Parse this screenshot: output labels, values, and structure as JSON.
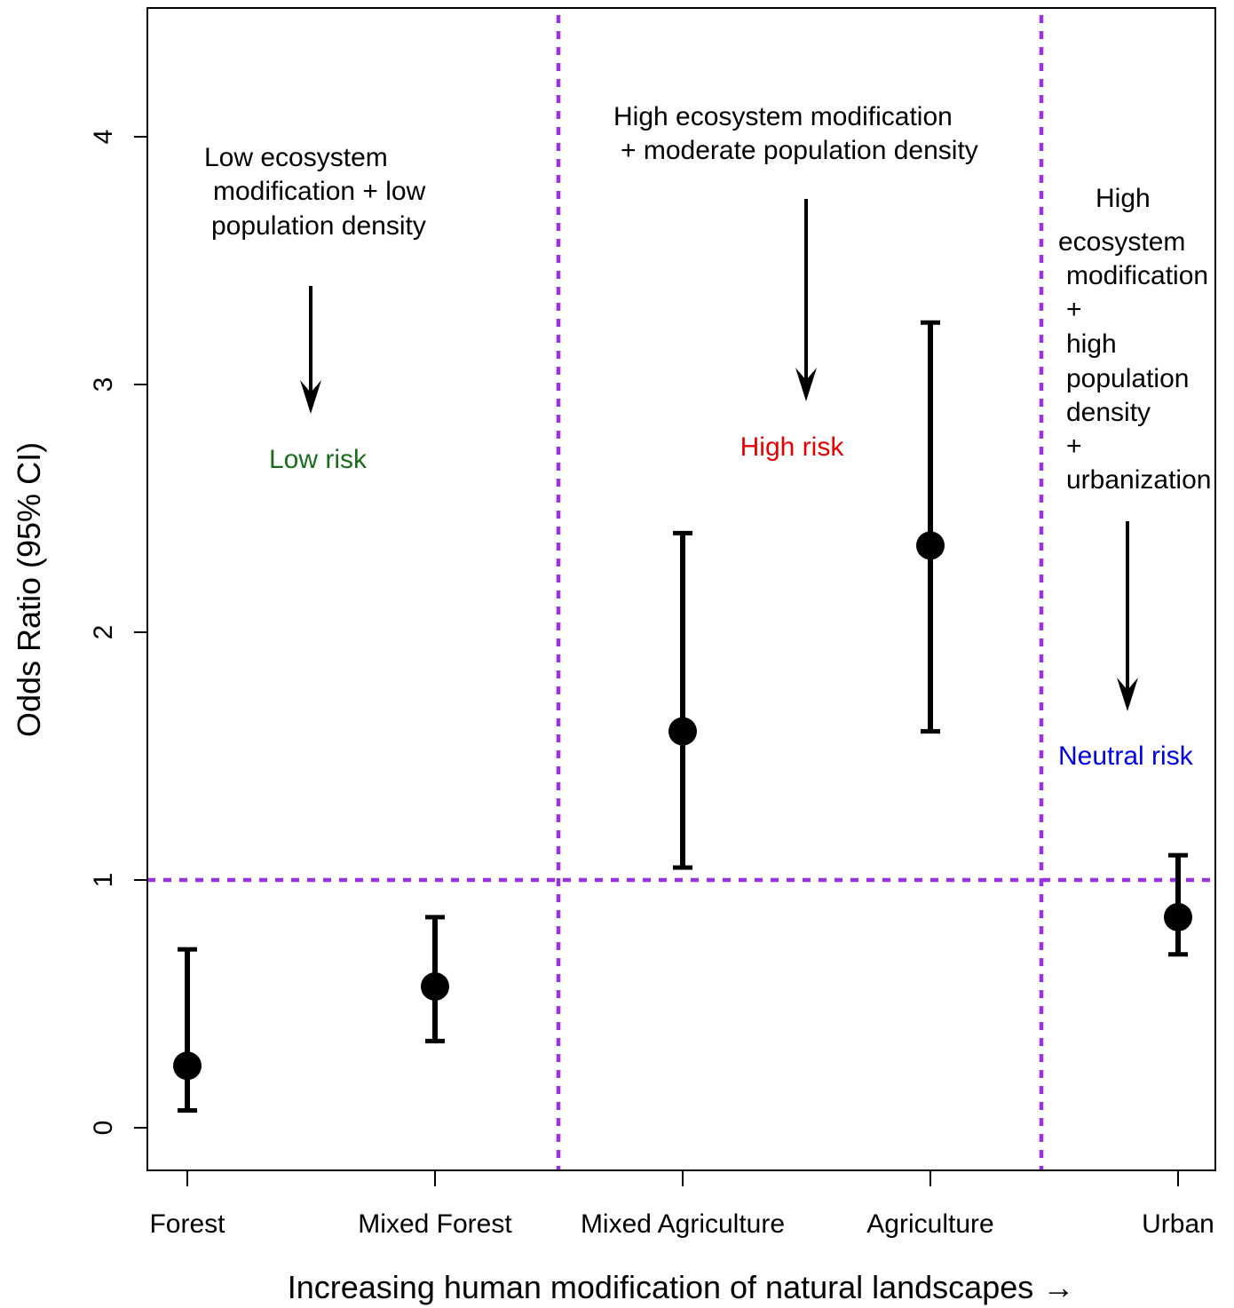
{
  "chart_data": {
    "type": "scatter",
    "xlabel": "Increasing human modification of natural landscapes →",
    "ylabel": "Odds Ratio (95% CI)",
    "categories": [
      "Forest",
      "Mixed Forest",
      "Mixed Agriculture",
      "Agriculture",
      "Urban"
    ],
    "series": [
      {
        "estimate": [
          0.25,
          0.57,
          1.6,
          2.35,
          0.85
        ],
        "lower": [
          0.07,
          0.35,
          1.05,
          1.6,
          0.7
        ],
        "upper": [
          0.72,
          0.85,
          2.4,
          3.25,
          1.1
        ]
      }
    ],
    "ylim": [
      -0.18,
      4.52
    ],
    "yticks": [
      "0",
      "1",
      "2",
      "3",
      "4"
    ],
    "reference_line": 1,
    "grid": false,
    "colors": {
      "points": "#000000",
      "reference": "#9b30e6",
      "low_risk": "#1a6e1a",
      "high_risk": "#e60000",
      "neutral_risk": "#0000e6"
    },
    "regions": [
      {
        "description_lines": [
          "Low ecosystem",
          " modification + low",
          " population density"
        ],
        "risk_label": "Low risk",
        "risk_color": "low_risk"
      },
      {
        "description_lines": [
          "High ecosystem modification",
          " + moderate population density"
        ],
        "risk_label": "High risk",
        "risk_color": "high_risk"
      },
      {
        "description_lines": [
          "High",
          "ecosystem",
          "modification",
          "+",
          "high",
          "population",
          "density",
          "+",
          "urbanization"
        ],
        "risk_label": "Neutral risk",
        "risk_color": "neutral_risk"
      }
    ]
  }
}
